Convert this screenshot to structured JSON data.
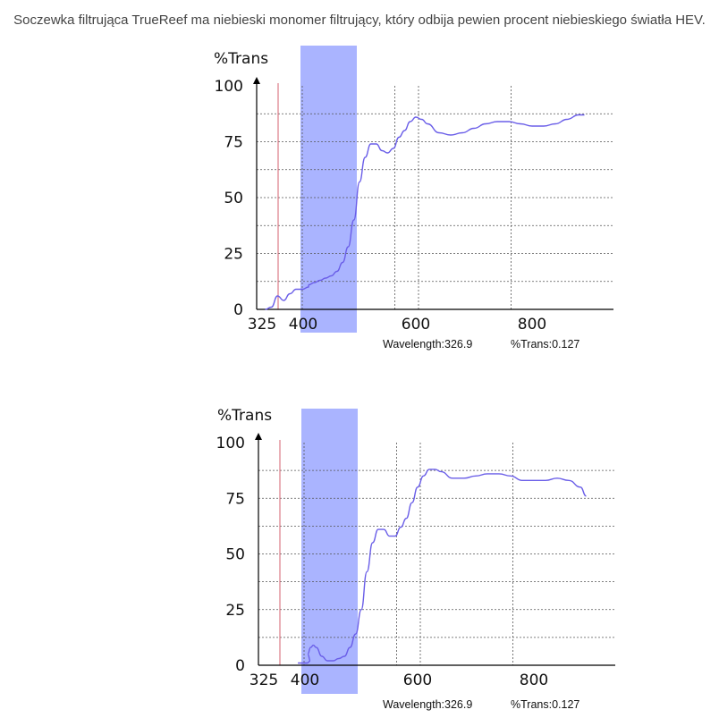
{
  "caption": "Soczewka filtrująca TrueReef ma niebieski monomer filtrujący, który odbija pewien procent niebieskiego światła HEV.",
  "chart_data": [
    {
      "type": "line",
      "ylabel": "%Trans",
      "ylim": [
        0,
        100
      ],
      "yticks": [
        "0",
        "25",
        "50",
        "75",
        "100"
      ],
      "xticks": [
        {
          "label": "325",
          "value": 325
        },
        {
          "label": "400",
          "value": 400
        },
        {
          "label": "600",
          "value": 600
        },
        {
          "label": "800",
          "value": 800
        }
      ],
      "band": [
        400,
        500
      ],
      "marker_x": 365,
      "readout": {
        "wavelength": "Wavelength:326.9",
        "trans": "%Trans:0.127"
      },
      "series": [
        {
          "color": "#6a5ee8",
          "x": [
            330,
            340,
            350,
            360,
            370,
            380,
            390,
            400,
            410,
            420,
            430,
            440,
            450,
            460,
            470,
            480,
            490,
            500,
            510,
            520,
            530,
            540,
            550,
            560,
            570,
            580,
            590,
            600,
            610,
            620,
            640,
            660,
            680,
            700,
            720,
            740,
            760,
            780,
            800,
            820,
            840,
            860,
            880,
            890
          ],
          "y": [
            0,
            1,
            6,
            4,
            7,
            9,
            9,
            10,
            11,
            12,
            13,
            14,
            15,
            17,
            21,
            28,
            40,
            57,
            68,
            74,
            74,
            71,
            70,
            72,
            77,
            80,
            84,
            86,
            85,
            83,
            79,
            78,
            79,
            81,
            83,
            84,
            84,
            83,
            82,
            82,
            83,
            85,
            87,
            87
          ]
        }
      ]
    },
    {
      "type": "line",
      "ylabel": "%Trans",
      "ylim": [
        0,
        100
      ],
      "yticks": [
        "0",
        "25",
        "50",
        "75",
        "100"
      ],
      "xticks": [
        {
          "label": "325",
          "value": 325
        },
        {
          "label": "400",
          "value": 400
        },
        {
          "label": "600",
          "value": 600
        },
        {
          "label": "800",
          "value": 800
        }
      ],
      "band": [
        400,
        500
      ],
      "marker_x": 365,
      "readout": {
        "wavelength": "Wavelength:326.9",
        "trans": "%Trans:0.127"
      },
      "series": [
        {
          "color": "#6a5ee8",
          "x": [
            380,
            395,
            400,
            405,
            410,
            415,
            420,
            430,
            440,
            450,
            460,
            470,
            480,
            490,
            500,
            510,
            520,
            530,
            540,
            550,
            560,
            570,
            580,
            590,
            600,
            610,
            620,
            630,
            640,
            660,
            680,
            700,
            720,
            740,
            760,
            780,
            800,
            820,
            840,
            860,
            880,
            890
          ],
          "y": [
            1,
            1,
            2,
            5,
            8,
            9,
            8,
            4,
            2,
            2,
            3,
            4,
            8,
            14,
            25,
            42,
            55,
            61,
            61,
            58,
            58,
            62,
            66,
            73,
            80,
            85,
            88,
            88,
            87,
            84,
            84,
            85,
            86,
            86,
            85,
            83,
            83,
            83,
            84,
            83,
            80,
            76
          ]
        }
      ]
    }
  ]
}
